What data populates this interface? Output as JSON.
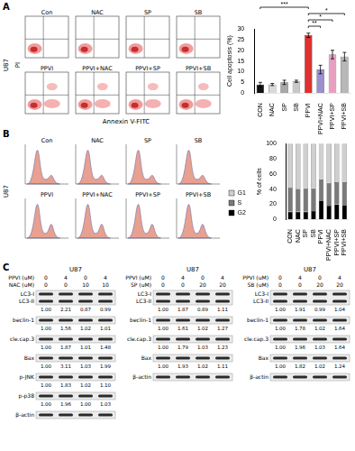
{
  "panel_labels": [
    "A",
    "B",
    "C"
  ],
  "flow": {
    "cell_line": "U87",
    "titles": [
      "Con",
      "NAC",
      "SP",
      "SB",
      "PPVI",
      "PPVI+NAC",
      "PPVI+SP",
      "PPVI+SB"
    ],
    "x_label": "Annexin V-FITC",
    "y_label": "PI"
  },
  "cycle": {
    "cell_line": "U87",
    "titles": [
      "Con",
      "NAC",
      "SP",
      "SB",
      "PPVI",
      "PPVI+NAC",
      "PPVI+SP",
      "PPVI+SB"
    ]
  },
  "chart_data": [
    {
      "type": "bar",
      "ylabel": "Cell apoptosis (%)",
      "categories": [
        "CON",
        "NAC",
        "SP",
        "SB",
        "PPVI",
        "PPVI+NAC",
        "PPVI+SP",
        "PPVI+SB"
      ],
      "values": [
        4,
        4,
        5,
        5.5,
        27,
        11,
        18,
        17
      ],
      "errors": [
        1,
        0.5,
        1,
        0.5,
        1,
        2,
        2,
        2
      ],
      "colors": [
        "#111111",
        "#d9d9d9",
        "#a8a8a8",
        "#c8c8c8",
        "#e03030",
        "#9b8fd0",
        "#e8a0c0",
        "#b8b8b8"
      ],
      "ylim": [
        0,
        30
      ],
      "yticks": [
        0,
        5,
        10,
        15,
        20,
        25,
        30
      ],
      "grid": false,
      "significance": [
        {
          "pair": [
            "PPVI",
            "PPVI+NAC"
          ],
          "label": "**"
        },
        {
          "pair": [
            "PPVI",
            "PPVI+SP"
          ],
          "label": "*"
        },
        {
          "pair": [
            "PPVI",
            "PPVI+SB"
          ],
          "label": "*"
        },
        {
          "pair": [
            "CON",
            "PPVI"
          ],
          "label": "***"
        }
      ]
    },
    {
      "type": "bar",
      "stacked": true,
      "ylabel": "% of cells",
      "categories": [
        "CON",
        "NAC",
        "SP",
        "SB",
        "PPVI",
        "PPVI+NAC",
        "PPVI+SP",
        "PPVI+SB"
      ],
      "series": [
        {
          "name": "G1",
          "color": "#cfcfcf",
          "values": [
            58,
            60,
            59,
            59,
            47,
            52,
            51,
            51
          ]
        },
        {
          "name": "S",
          "color": "#7a7a7a",
          "values": [
            32,
            30,
            31,
            30,
            28,
            30,
            29,
            30
          ]
        },
        {
          "name": "G2",
          "color": "#000000",
          "values": [
            10,
            10,
            10,
            11,
            25,
            18,
            20,
            19
          ]
        }
      ],
      "ylim": [
        0,
        100
      ],
      "yticks": [
        0,
        20,
        40,
        60,
        80,
        100
      ],
      "grid": false,
      "legend": "left"
    }
  ],
  "blots": [
    {
      "cell_line": "U87",
      "treatments": [
        {
          "name": "PPVI (uM)",
          "doses": [
            0,
            4,
            0,
            4
          ]
        },
        {
          "name": "NAC (uM)",
          "doses": [
            0,
            0,
            10,
            10
          ]
        }
      ],
      "rows": [
        {
          "labels": [
            "LC3-I",
            "LC3-II"
          ],
          "ratios": [
            "1.00",
            "2.21",
            "0.87",
            "0.99"
          ]
        },
        {
          "labels": [
            "beclin-1"
          ],
          "ratios": [
            "1.00",
            "1.56",
            "1.02",
            "1.01"
          ]
        },
        {
          "labels": [
            "cle.cap.3"
          ],
          "ratios": [
            "1.00",
            "1.87",
            "1.01",
            "1.48"
          ]
        },
        {
          "labels": [
            "Bax"
          ],
          "ratios": [
            "1.00",
            "3.11",
            "1.03",
            "1.99"
          ]
        },
        {
          "labels": [
            "p-JNK"
          ],
          "ratios": [
            "1.00",
            "1.83",
            "1.02",
            "1.10"
          ]
        },
        {
          "labels": [
            "p-p38"
          ],
          "ratios": [
            "1.00",
            "1.96",
            "1.00",
            "1.03"
          ]
        },
        {
          "labels": [
            "β-actin"
          ]
        }
      ]
    },
    {
      "cell_line": "U87",
      "treatments": [
        {
          "name": "PPVI (uM)",
          "doses": [
            0,
            4,
            0,
            4
          ]
        },
        {
          "name": "SP (uM)",
          "doses": [
            0,
            0,
            20,
            20
          ]
        }
      ],
      "rows": [
        {
          "labels": [
            "LC3-I",
            "LC3-II"
          ],
          "ratios": [
            "1.00",
            "1.87",
            "0.89",
            "1.11"
          ]
        },
        {
          "labels": [
            "beclin-1"
          ],
          "ratios": [
            "1.00",
            "1.61",
            "1.02",
            "1.27"
          ]
        },
        {
          "labels": [
            "cle.cap.3"
          ],
          "ratios": [
            "1.00",
            "1.79",
            "1.03",
            "1.23"
          ]
        },
        {
          "labels": [
            "Bax"
          ],
          "ratios": [
            "1.00",
            "1.93",
            "1.02",
            "1.11"
          ]
        },
        {
          "labels": [
            "β-actin"
          ]
        }
      ]
    },
    {
      "cell_line": "U87",
      "treatments": [
        {
          "name": "PPVI (uM)",
          "doses": [
            0,
            4,
            0,
            4
          ]
        },
        {
          "name": "SB (uM)",
          "doses": [
            0,
            0,
            20,
            20
          ]
        }
      ],
      "rows": [
        {
          "labels": [
            "LC3-I",
            "LC3-II"
          ],
          "ratios": [
            "1.00",
            "1.91",
            "0.99",
            "1.04"
          ]
        },
        {
          "labels": [
            "beclin-1"
          ],
          "ratios": [
            "1.00",
            "1.78",
            "1.02",
            "1.64"
          ]
        },
        {
          "labels": [
            "cle.cap.3"
          ],
          "ratios": [
            "1.00",
            "1.96",
            "1.03",
            "1.64"
          ]
        },
        {
          "labels": [
            "Bax"
          ],
          "ratios": [
            "1.00",
            "1.82",
            "1.02",
            "1.24"
          ]
        },
        {
          "labels": [
            "β-actin"
          ]
        }
      ]
    }
  ]
}
